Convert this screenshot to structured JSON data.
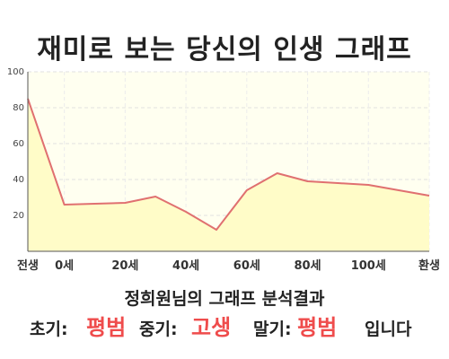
{
  "title": "재미로 보는 당신의 인생 그래프",
  "subtitle": "정희원님의 그래프 분석결과",
  "summary": {
    "early_label": "초기:",
    "early_value": "평범",
    "mid_label": "중기:",
    "mid_value": "고생",
    "late_label": "말기:",
    "late_value": "평범",
    "ending": "입니다"
  },
  "colors": {
    "line": "#e07070",
    "fill": "#fffcc8",
    "plot_bg": "#fffff0",
    "value_text": "#ef4c4c"
  },
  "chart_data": {
    "type": "area",
    "title": "재미로 보는 당신의 인생 그래프",
    "x": [
      -12,
      0,
      10,
      20,
      30,
      40,
      50,
      60,
      70,
      80,
      90,
      100,
      110,
      120
    ],
    "values": [
      85,
      26,
      26.5,
      27,
      30.5,
      22,
      12,
      34,
      43.5,
      39,
      38,
      37,
      34,
      31
    ],
    "x_ticks": [
      {
        "value": -12,
        "label": "전생"
      },
      {
        "value": 0,
        "label": "0세"
      },
      {
        "value": 20,
        "label": "20세"
      },
      {
        "value": 40,
        "label": "40세"
      },
      {
        "value": 60,
        "label": "60세"
      },
      {
        "value": 80,
        "label": "80세"
      },
      {
        "value": 100,
        "label": "100세"
      },
      {
        "value": 120,
        "label": "환생"
      }
    ],
    "y_ticks": [
      20,
      40,
      60,
      80,
      100
    ],
    "xlim": [
      -12,
      120
    ],
    "ylim": [
      0,
      100
    ],
    "grid": true,
    "legend": "none"
  }
}
